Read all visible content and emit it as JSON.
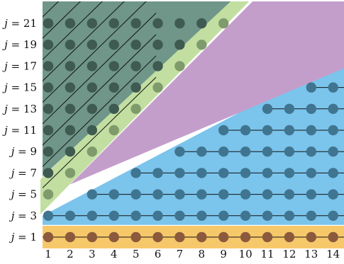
{
  "x_labels": [
    "1",
    "2",
    "3",
    "4",
    "5",
    "6",
    "7",
    "8",
    "9",
    "10",
    "11",
    "12",
    "13",
    "14"
  ],
  "y_labels": [
    {
      "j": 1,
      "text": "j = 1"
    },
    {
      "j": 3,
      "text": "j = 3"
    },
    {
      "j": 5,
      "text": "j = 5"
    },
    {
      "j": 7,
      "text": "j = 7"
    },
    {
      "j": 9,
      "text": "j = 9"
    },
    {
      "j": 11,
      "text": "j = 11"
    },
    {
      "j": 13,
      "text": "j = 13"
    },
    {
      "j": 15,
      "text": "j = 15"
    },
    {
      "j": 17,
      "text": "j = 17"
    },
    {
      "j": 19,
      "text": "j = 19"
    },
    {
      "j": 21,
      "text": "j = 21"
    }
  ],
  "rows": [
    {
      "j": 1,
      "start_x": 1,
      "end_x": 14,
      "zone": "orange"
    },
    {
      "j": 3,
      "start_x": 1,
      "end_x": 14,
      "zone": "blue"
    },
    {
      "j": 5,
      "start_x": 3,
      "end_x": 14,
      "zone": "blue"
    },
    {
      "j": 7,
      "start_x": 5,
      "end_x": 14,
      "zone": "blue"
    },
    {
      "j": 9,
      "start_x": 7,
      "end_x": 14,
      "zone": "blue"
    },
    {
      "j": 11,
      "start_x": 9,
      "end_x": 14,
      "zone": "blue"
    },
    {
      "j": 13,
      "start_x": 11,
      "end_x": 14,
      "zone": "blue"
    },
    {
      "j": 15,
      "start_x": 13,
      "end_x": 14,
      "zone": "blue"
    }
  ],
  "upper_rows": [
    {
      "j": 5,
      "green_x": 1
    },
    {
      "j": 7,
      "green_x": 2
    },
    {
      "j": 9,
      "green_x": 3
    },
    {
      "j": 11,
      "green_x": 4
    },
    {
      "j": 13,
      "green_x": 5
    },
    {
      "j": 15,
      "green_x": 6
    },
    {
      "j": 17,
      "green_x": 7
    },
    {
      "j": 19,
      "green_x": 8
    },
    {
      "j": 21,
      "green_x": 9
    }
  ],
  "colors": {
    "orange_band": "#f7c86a",
    "orange_node": "#8b5a3c",
    "blue_region": "#7bc4ec",
    "blue_node": "#3f7590",
    "purple_region": "#c49ecb",
    "green_band": "#c2dfa1",
    "green_node": "#7f9a6b",
    "teal_region": "#6f9689",
    "teal_node": "#3e5a51",
    "line": "#111111"
  }
}
